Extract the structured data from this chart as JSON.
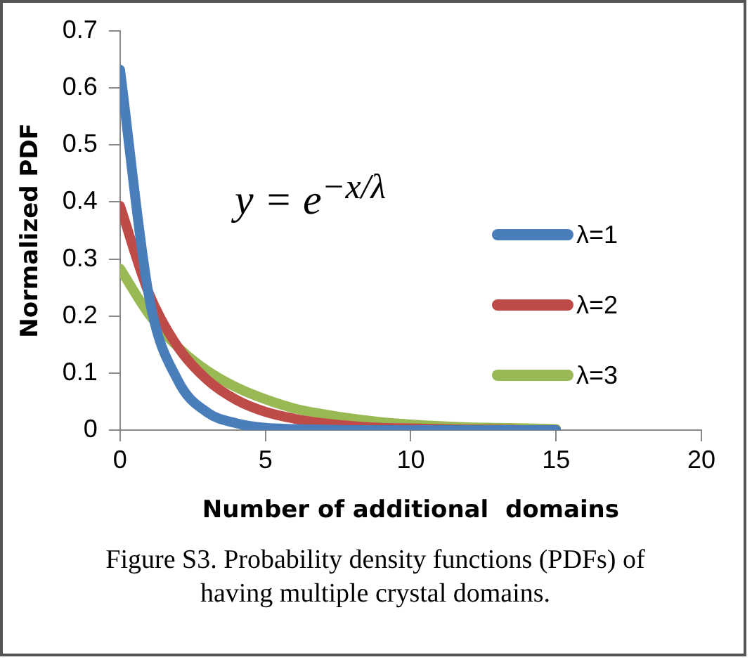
{
  "chart_data": {
    "type": "line",
    "xlabel": "Number of additional  domains",
    "ylabel": "Normalized PDF",
    "x": [
      0,
      1,
      2,
      3,
      4,
      5,
      6,
      7,
      8,
      9,
      10,
      11,
      12,
      13,
      14,
      15
    ],
    "series": [
      {
        "name": "λ=1",
        "color": "#4a7ebb",
        "values": [
          0.632,
          0.233,
          0.086,
          0.031,
          0.012,
          0.004,
          0.002,
          0.001,
          0,
          0,
          0,
          0,
          0,
          0,
          0,
          0
        ]
      },
      {
        "name": "λ=2",
        "color": "#be4b48",
        "values": [
          0.393,
          0.239,
          0.145,
          0.088,
          0.053,
          0.032,
          0.02,
          0.012,
          0.007,
          0.004,
          0.003,
          0.002,
          0.001,
          0.001,
          0,
          0
        ]
      },
      {
        "name": "λ=3",
        "color": "#98b954",
        "values": [
          0.283,
          0.203,
          0.145,
          0.104,
          0.075,
          0.054,
          0.038,
          0.028,
          0.02,
          0.014,
          0.01,
          0.007,
          0.005,
          0.004,
          0.003,
          0.002
        ]
      }
    ],
    "xlim": [
      0,
      20
    ],
    "xticks": [
      0,
      5,
      10,
      15,
      20
    ],
    "ylim": [
      0,
      0.7
    ],
    "yticks": [
      0,
      0.1,
      0.2,
      0.3,
      0.4,
      0.5,
      0.6,
      0.7
    ],
    "grid": false,
    "legend": "right",
    "marker": "none",
    "line_style": "solid",
    "annotations": [
      "y = e$^{−x/λ}$",
      "Figure S3. Probability density functions (PDFs) of having multiple crystal domains."
    ]
  }
}
